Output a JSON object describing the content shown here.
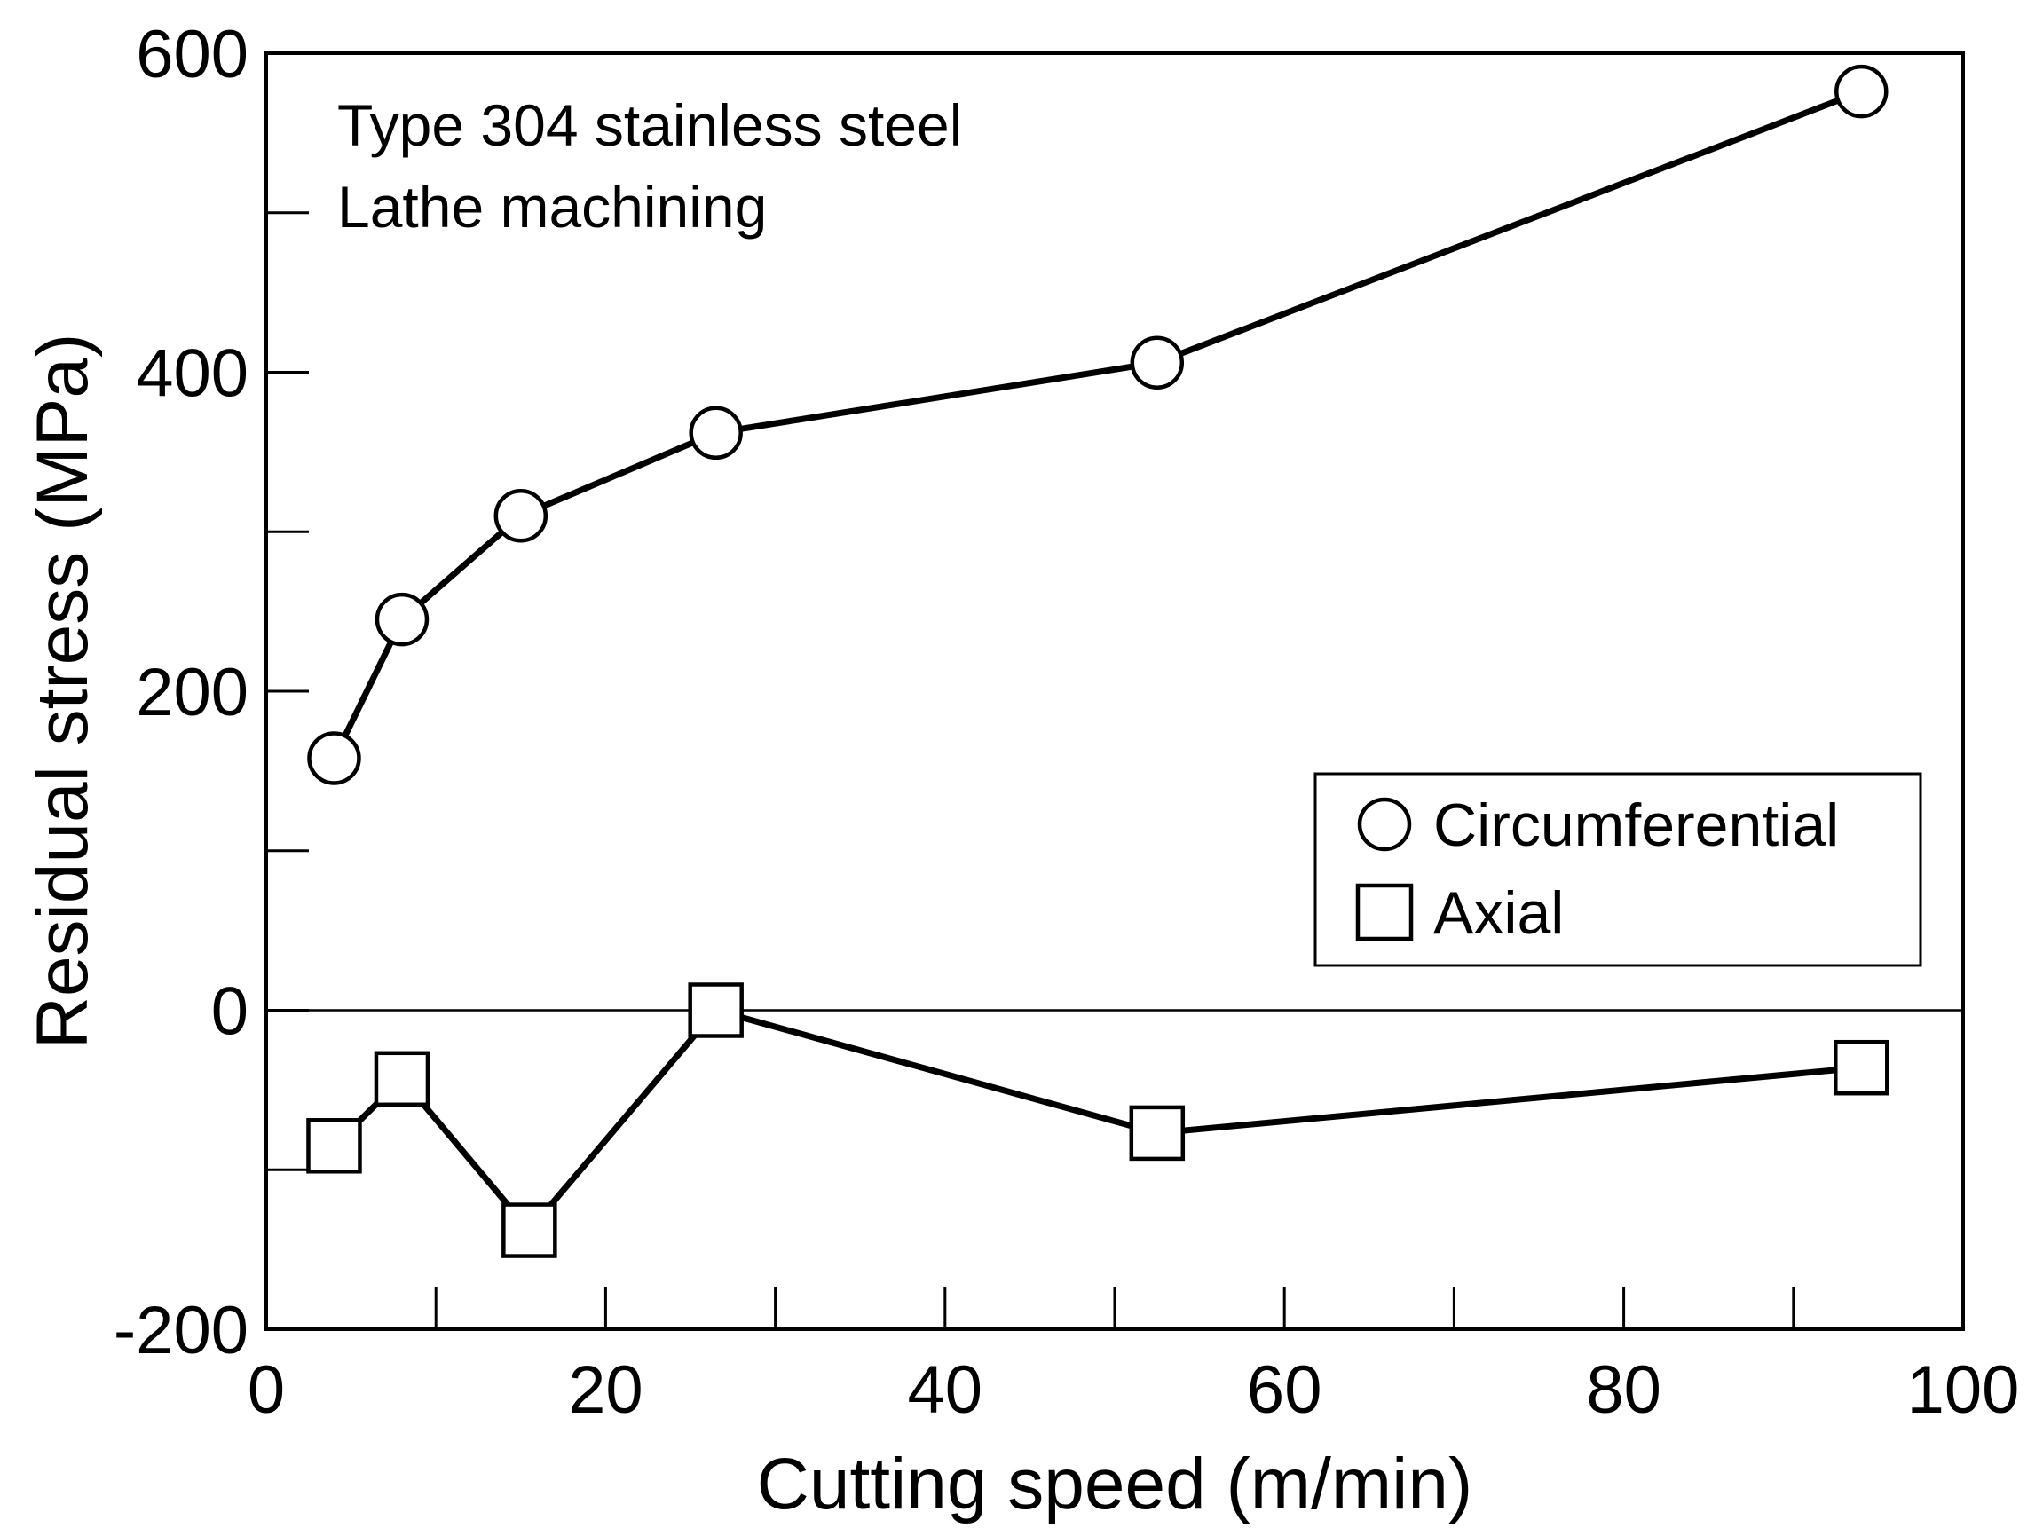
{
  "chart_data": {
    "type": "line",
    "title": "",
    "xlabel": "Cutting speed (m/min)",
    "ylabel": "Residual stress (MPa)",
    "xlim": [
      0,
      100
    ],
    "ylim": [
      -200,
      600
    ],
    "x_ticks_major": [
      0,
      20,
      40,
      60,
      80,
      100
    ],
    "x_ticks_minor": [
      10,
      30,
      50,
      70,
      90
    ],
    "y_ticks_major": [
      -200,
      0,
      200,
      400,
      600
    ],
    "y_ticks_minor": [
      -100,
      100,
      300,
      500
    ],
    "x_tick_labels": [
      "0",
      "20",
      "40",
      "60",
      "80",
      "100"
    ],
    "y_tick_labels": [
      "-200",
      "0",
      "200",
      "400",
      "600"
    ],
    "zero_line": true,
    "grid": false,
    "annotation": [
      "Type 304 stainless steel",
      "Lathe machining"
    ],
    "legend_position": "right-middle",
    "series": [
      {
        "name": "Circumferential",
        "marker": "circle",
        "x": [
          4,
          8,
          15,
          26.5,
          52.5,
          94
        ],
        "values": [
          158,
          245,
          310,
          362,
          406,
          576
        ]
      },
      {
        "name": "Axial",
        "marker": "square",
        "x": [
          4,
          8,
          15.5,
          26.5,
          52.5,
          94
        ],
        "values": [
          -85,
          -43,
          -138,
          0,
          -77,
          -36
        ]
      }
    ]
  }
}
